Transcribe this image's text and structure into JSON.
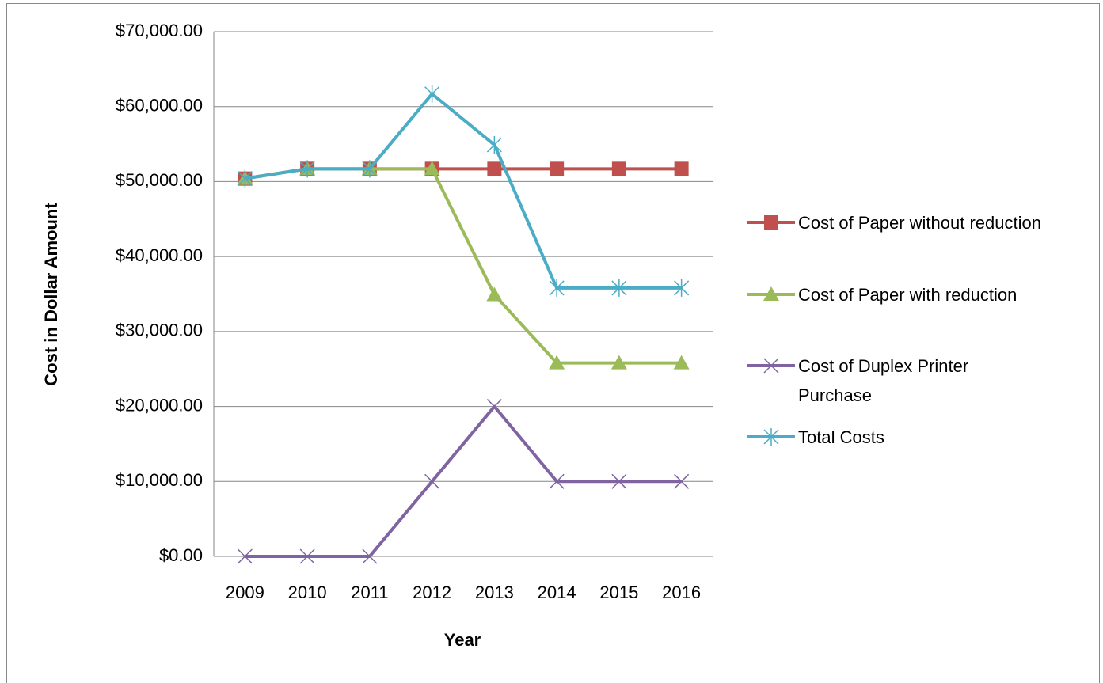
{
  "chart_data": {
    "type": "line",
    "xlabel": "Year",
    "ylabel": "Cost in Dollar Amount",
    "categories": [
      "2009",
      "2010",
      "2011",
      "2012",
      "2013",
      "2014",
      "2015",
      "2016"
    ],
    "series": [
      {
        "name": "Cost of Paper without reduction",
        "color": "#c0504d",
        "marker": "square",
        "values": [
          50400,
          51700,
          51700,
          51700,
          51700,
          51700,
          51700,
          51700
        ]
      },
      {
        "name": "Cost of Paper with reduction",
        "color": "#9bbb59",
        "marker": "triangle",
        "values": [
          50400,
          51700,
          51700,
          51700,
          34900,
          25800,
          25800,
          25800
        ]
      },
      {
        "name": "Cost of Duplex Printer Purchase",
        "color": "#8064a2",
        "marker": "x",
        "values": [
          0,
          0,
          0,
          10000,
          20000,
          10000,
          10000,
          10000
        ]
      },
      {
        "name": "Total Costs",
        "color": "#4bacc6",
        "marker": "star",
        "values": [
          50400,
          51700,
          51700,
          61700,
          54900,
          35800,
          35800,
          35800
        ]
      }
    ],
    "ylim": [
      0,
      70000
    ],
    "yticks": [
      {
        "value": 0,
        "label": "$0.00"
      },
      {
        "value": 10000,
        "label": "$10,000.00"
      },
      {
        "value": 20000,
        "label": "$20,000.00"
      },
      {
        "value": 30000,
        "label": "$30,000.00"
      },
      {
        "value": 40000,
        "label": "$40,000.00"
      },
      {
        "value": 50000,
        "label": "$50,000.00"
      },
      {
        "value": 60000,
        "label": "$60,000.00"
      },
      {
        "value": 70000,
        "label": "$70,000.00"
      }
    ],
    "grid": true,
    "legend": "right"
  }
}
